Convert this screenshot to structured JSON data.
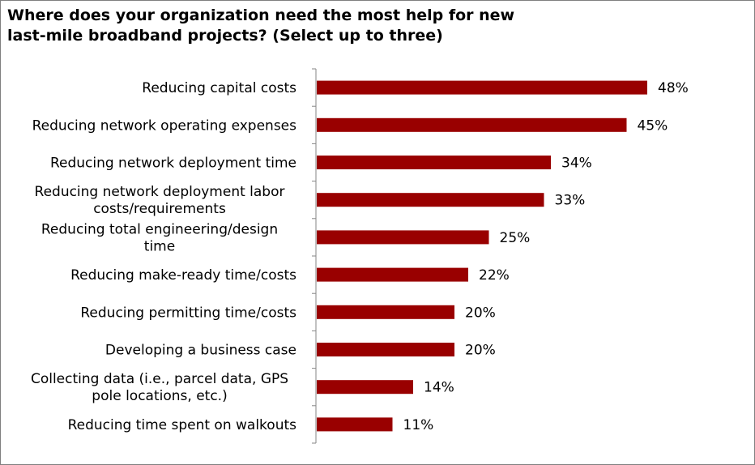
{
  "chart_data": {
    "type": "bar",
    "orientation": "horizontal",
    "title": "Where does your organization need the most help for new\nlast-mile broadband projects? (Select up to three)",
    "categories": [
      "Reducing capital costs",
      "Reducing network operating expenses",
      "Reducing network deployment time",
      "Reducing network deployment labor costs/requirements",
      "Reducing total engineering/design time",
      "Reducing make-ready time/costs",
      "Reducing permitting time/costs",
      "Developing a business case",
      "Collecting data (i.e., parcel data, GPS pole locations, etc.)",
      "Reducing time spent on walkouts"
    ],
    "category_lines": [
      [
        "Reducing capital costs"
      ],
      [
        "Reducing network operating expenses"
      ],
      [
        "Reducing network deployment time"
      ],
      [
        "Reducing network deployment labor",
        "costs/requirements"
      ],
      [
        "Reducing total engineering/design",
        "time"
      ],
      [
        "Reducing make-ready time/costs"
      ],
      [
        "Reducing permitting time/costs"
      ],
      [
        "Developing a business case"
      ],
      [
        "Collecting data (i.e., parcel data, GPS",
        "pole locations, etc.)"
      ],
      [
        "Reducing time spent on walkouts"
      ]
    ],
    "values": [
      48,
      45,
      34,
      33,
      25,
      22,
      20,
      20,
      14,
      11
    ],
    "value_labels": [
      "48%",
      "45%",
      "34%",
      "33%",
      "25%",
      "22%",
      "20%",
      "20%",
      "14%",
      "11%"
    ],
    "unit": "%",
    "xlim": [
      0,
      60
    ],
    "xlabel": "",
    "ylabel": "",
    "grid": false,
    "legend": "none",
    "bar_color": "#990000",
    "axis_color": "#868686"
  }
}
